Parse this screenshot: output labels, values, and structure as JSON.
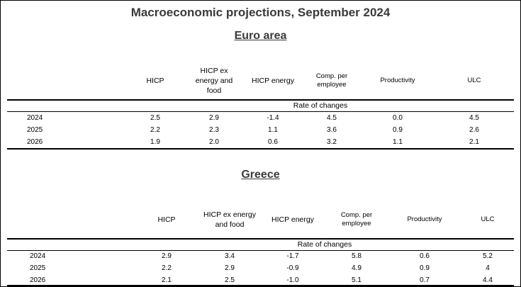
{
  "title": "Macroeconomic projections, September 2024",
  "sections": [
    {
      "name": "Euro area",
      "headers": [
        "HICP",
        "HICP ex\nenergy and\nfood",
        "HICP energy",
        "Comp. per\nemployee",
        "Productivity",
        "ULC"
      ],
      "subheader": "Rate of changes",
      "rows": [
        {
          "year": "2024",
          "values": [
            "2.5",
            "2.9",
            "-1.4",
            "4.5",
            "0.0",
            "4.5"
          ]
        },
        {
          "year": "2025",
          "values": [
            "2.2",
            "2.3",
            "1.1",
            "3.6",
            "0.9",
            "2.6"
          ]
        },
        {
          "year": "2026",
          "values": [
            "1.9",
            "2.0",
            "0.6",
            "3.2",
            "1.1",
            "2.1"
          ]
        }
      ]
    },
    {
      "name": "Greece",
      "headers": [
        "HICP",
        "HICP ex energy\nand food",
        "HICP energy",
        "Comp. per\nemployee",
        "Productivity",
        "ULC"
      ],
      "subheader": "Rate of changes",
      "rows": [
        {
          "year": "2024",
          "values": [
            "2.9",
            "3.4",
            "-1.7",
            "5.8",
            "0.6",
            "5.2"
          ]
        },
        {
          "year": "2025",
          "values": [
            "2.2",
            "2.9",
            "-0.9",
            "4.9",
            "0.9",
            "4"
          ]
        },
        {
          "year": "2026",
          "values": [
            "2.1",
            "2.5",
            "-1.0",
            "5.1",
            "0.7",
            "4.4"
          ]
        }
      ]
    }
  ]
}
